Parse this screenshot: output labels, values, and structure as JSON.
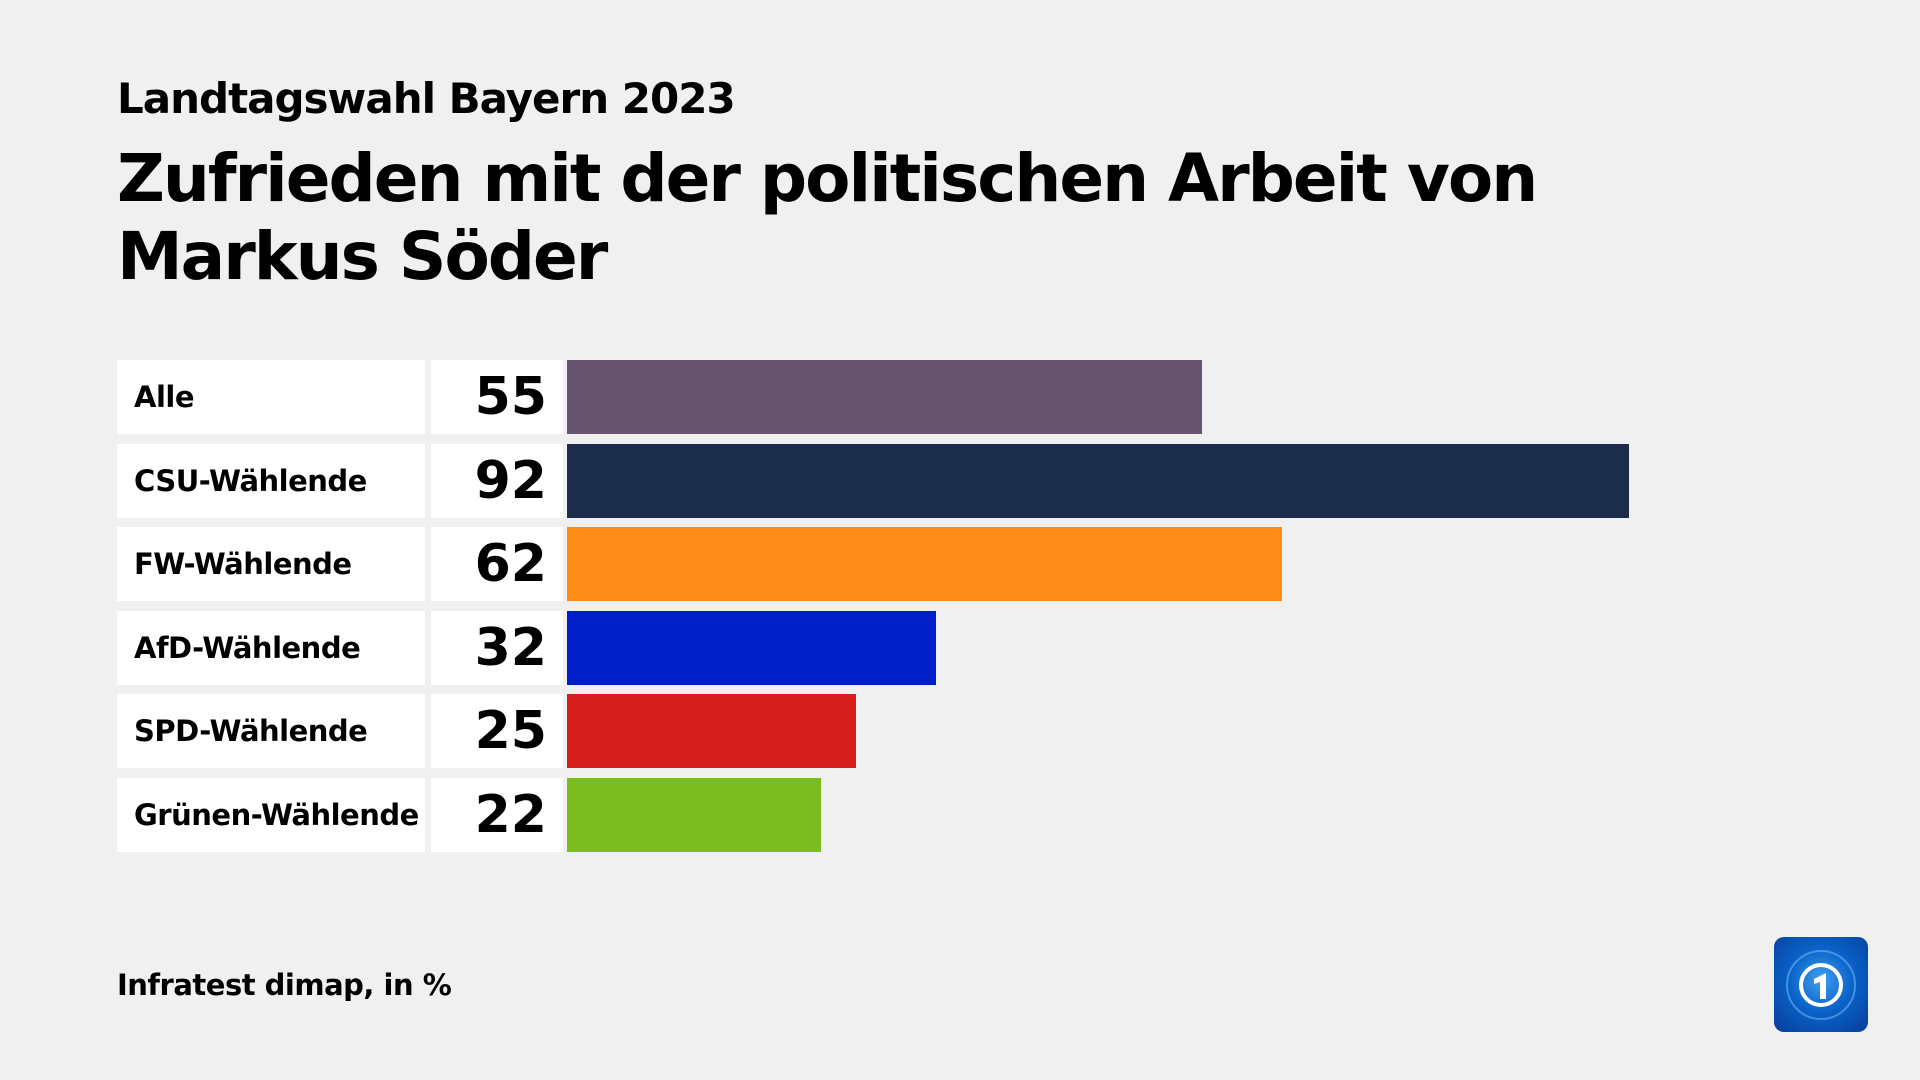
{
  "header": {
    "supertitle": "Landtagswahl Bayern 2023",
    "title": "Zufrieden mit der politischen Arbeit von Markus Söder"
  },
  "chart_data": {
    "type": "bar",
    "orientation": "horizontal",
    "categories": [
      "Alle",
      "CSU-Wählende",
      "FW-Wählende",
      "AfD-Wählende",
      "SPD-Wählende",
      "Grünen-Wählende"
    ],
    "values": [
      55,
      92,
      62,
      32,
      25,
      22
    ],
    "colors": [
      "#67546f",
      "#1b2d4b",
      "#ff8c17",
      "#001fc9",
      "#d71e1e",
      "#7bbd1e"
    ],
    "title": "Zufrieden mit der politischen Arbeit von Markus Söder",
    "unit": "%"
  },
  "footer": {
    "source": "Infratest dimap, in %"
  },
  "logo": {
    "name": "tagesschau-logo-icon"
  }
}
